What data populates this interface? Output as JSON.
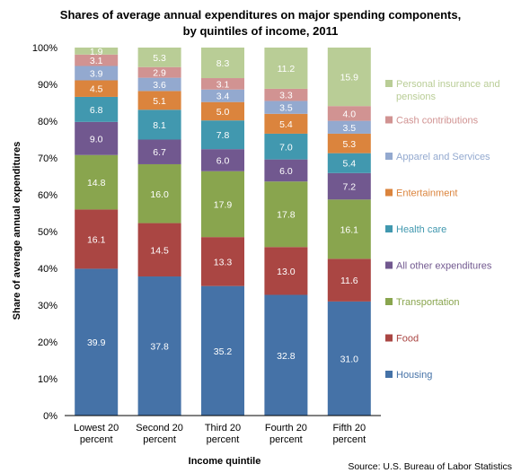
{
  "chart_data": {
    "type": "bar",
    "stacked": true,
    "title": "Shares of average annual expenditures on major spending components,",
    "subtitle": "by quintiles of income, 2011",
    "xlabel": "Income quintile",
    "ylabel": "Share of average annual expenditures",
    "ylim": [
      0,
      100
    ],
    "y_ticks": [
      "0%",
      "10%",
      "20%",
      "30%",
      "40%",
      "50%",
      "60%",
      "70%",
      "80%",
      "90%",
      "100%"
    ],
    "categories": [
      [
        "Lowest 20",
        "percent"
      ],
      [
        "Second 20",
        "percent"
      ],
      [
        "Third 20",
        "percent"
      ],
      [
        "Fourth 20",
        "percent"
      ],
      [
        "Fifth 20",
        "percent"
      ]
    ],
    "series": [
      {
        "name": "Housing",
        "color": "#4572A7",
        "values": [
          39.9,
          37.8,
          35.2,
          32.8,
          31.0
        ]
      },
      {
        "name": "Food",
        "color": "#AA4643",
        "values": [
          16.1,
          14.5,
          13.3,
          13.0,
          11.6
        ]
      },
      {
        "name": "Transportation",
        "color": "#89A54E",
        "values": [
          14.8,
          16.0,
          17.9,
          17.8,
          16.1
        ]
      },
      {
        "name": "All other expenditures",
        "color": "#71588F",
        "values": [
          9.0,
          6.7,
          6.0,
          6.0,
          7.2
        ]
      },
      {
        "name": "Health care",
        "color": "#4198AF",
        "values": [
          6.8,
          8.1,
          7.8,
          7.0,
          5.4
        ]
      },
      {
        "name": "Entertainment",
        "color": "#DB843D",
        "values": [
          4.5,
          5.1,
          5.0,
          5.4,
          5.3
        ]
      },
      {
        "name": "Apparel and Services",
        "color": "#93A9CF",
        "values": [
          3.9,
          3.6,
          3.4,
          3.5,
          3.5
        ]
      },
      {
        "name": "Cash contributions",
        "color": "#D19392",
        "values": [
          3.1,
          2.9,
          3.1,
          3.3,
          4.0
        ]
      },
      {
        "name": "Personal insurance and pensions",
        "legend_lines": [
          "Personal insurance and",
          "pensions"
        ],
        "color": "#B9CD96",
        "values": [
          1.9,
          5.3,
          8.3,
          11.2,
          15.9
        ]
      }
    ],
    "legend_position": "right",
    "grid": false,
    "source": "Source: U.S. Bureau of Labor Statistics"
  }
}
